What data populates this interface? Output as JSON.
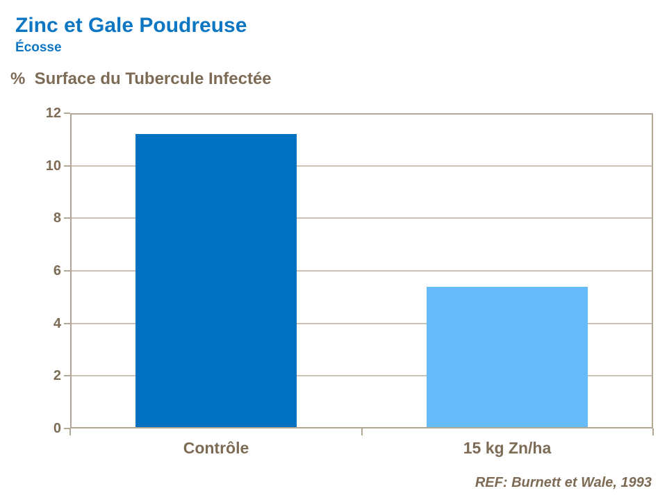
{
  "header": {
    "title": "Zinc et Gale Poudreuse",
    "subtitle": "Écosse"
  },
  "axis_title": "%  Surface du Tubercule Infectée",
  "footer": {
    "ref": "REF: Burnett et Wale, 1993"
  },
  "colors": {
    "title_blue": "#0d76c3",
    "text_brown": "#7d6b55",
    "axis_line": "#b2a795",
    "gridline": "#ccc3b7",
    "bar_controle": "#0070c0",
    "bar_zinc": "#66bcfa"
  },
  "chart_data": {
    "type": "bar",
    "categories": [
      "Contrôle",
      "15 kg Zn/ha"
    ],
    "values": [
      11.2,
      5.4
    ],
    "bar_colors": [
      "#0070c0",
      "#66bcfa"
    ],
    "title": "Zinc et Gale Poudreuse",
    "subtitle": "Écosse",
    "xlabel": "",
    "ylabel": "% Surface du Tubercule Infectée",
    "ylim": [
      0,
      12
    ],
    "yticks": [
      0,
      2,
      4,
      6,
      8,
      10,
      12
    ],
    "grid": true,
    "legend": "none",
    "annotation": "REF: Burnett et Wale, 1993"
  }
}
